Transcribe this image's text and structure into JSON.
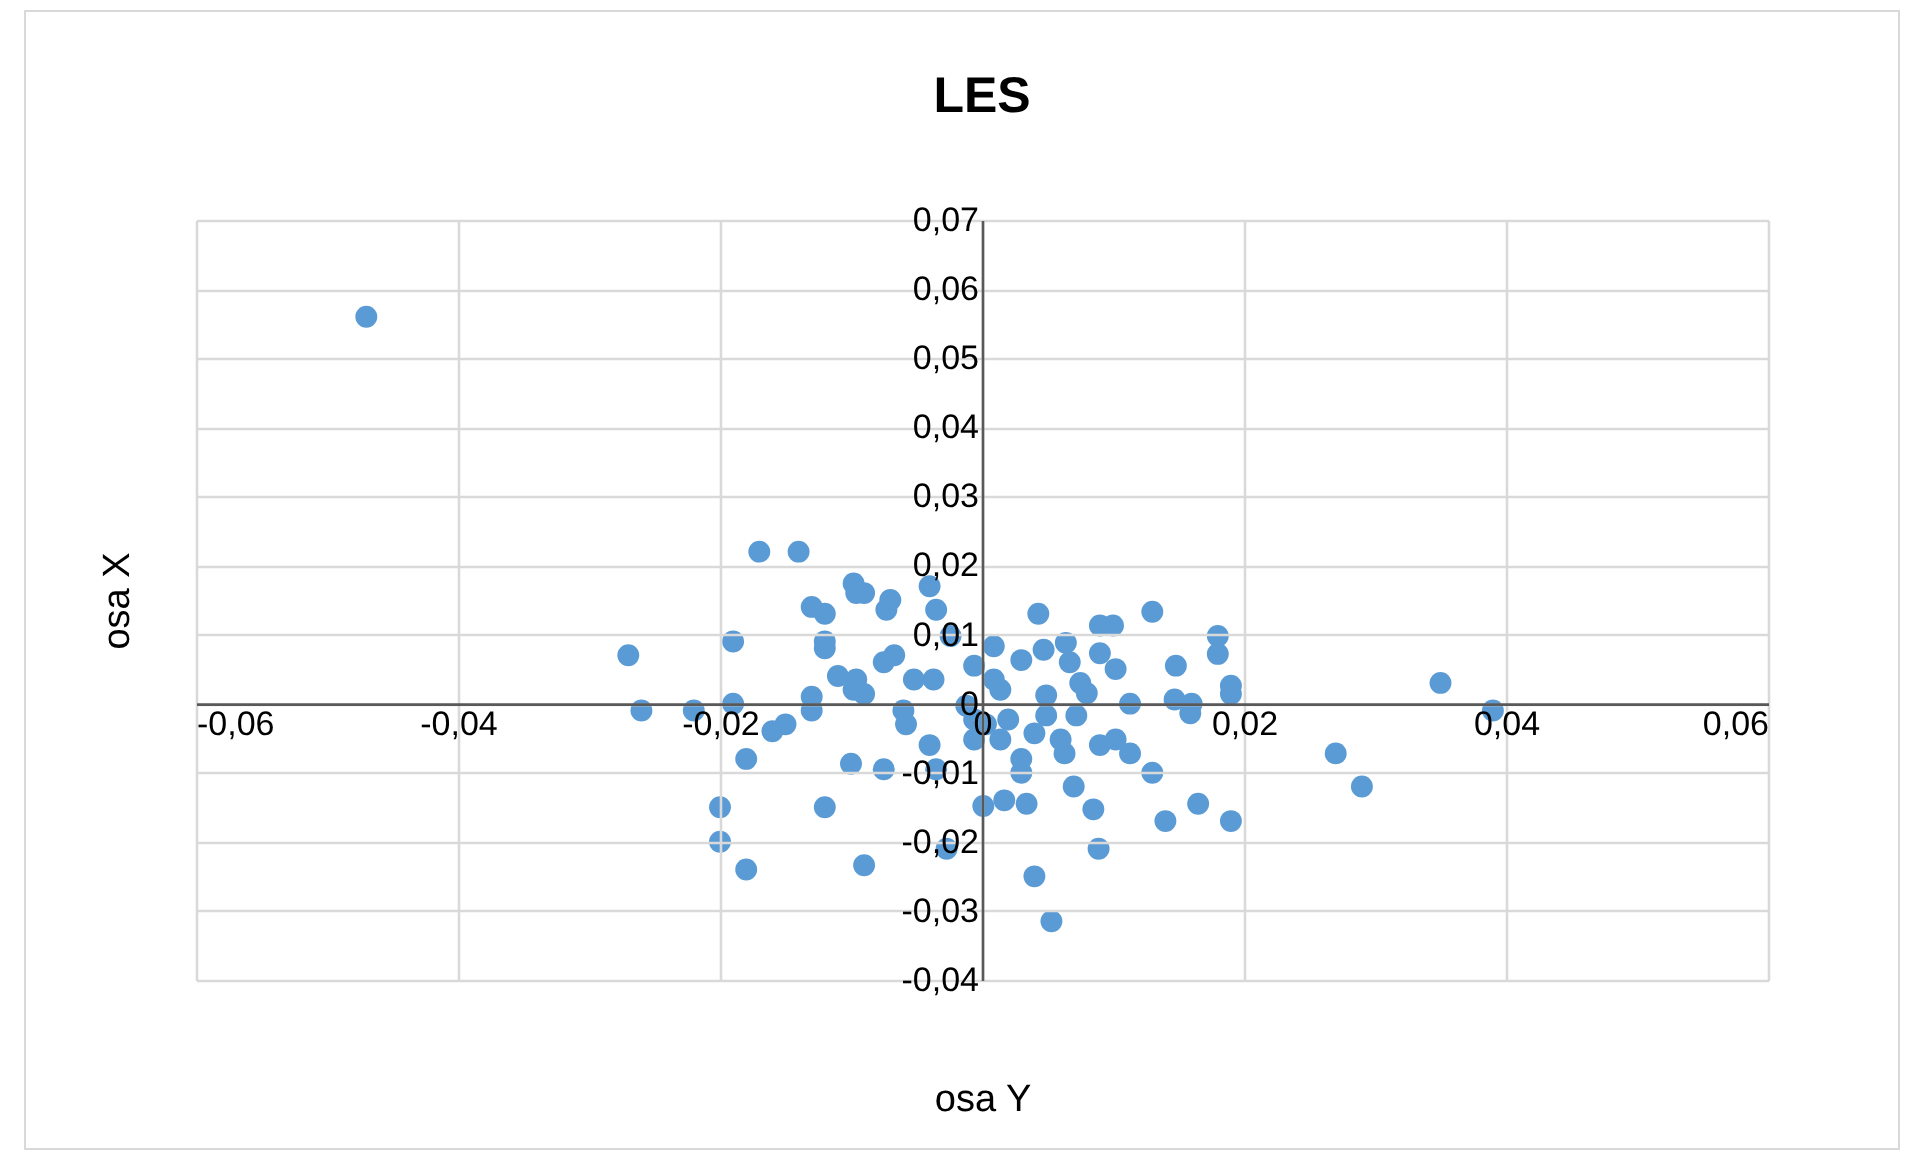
{
  "chart_data": {
    "type": "scatter",
    "title": "LES",
    "xlabel": "osa Y",
    "ylabel": "osa X",
    "color": "#5b9bd5",
    "marker": "circle",
    "grid": true,
    "xlim": [
      -0.06,
      0.06
    ],
    "ylim": [
      -0.04,
      0.07
    ],
    "xticks": [
      {
        "value": -0.06,
        "label": "-0,06"
      },
      {
        "value": -0.04,
        "label": "-0,04"
      },
      {
        "value": -0.02,
        "label": "-0,02"
      },
      {
        "value": 0,
        "label": "0"
      },
      {
        "value": 0.02,
        "label": "0,02"
      },
      {
        "value": 0.04,
        "label": "0,04"
      },
      {
        "value": 0.06,
        "label": "0,06"
      }
    ],
    "yticks": [
      {
        "value": -0.04,
        "label": "-0,04"
      },
      {
        "value": -0.03,
        "label": "-0,03"
      },
      {
        "value": -0.02,
        "label": "-0,02"
      },
      {
        "value": -0.01,
        "label": "-0,01"
      },
      {
        "value": 0,
        "label": "0"
      },
      {
        "value": 0.01,
        "label": "0,01"
      },
      {
        "value": 0.02,
        "label": "0,02"
      },
      {
        "value": 0.03,
        "label": "0,03"
      },
      {
        "value": 0.04,
        "label": "0,04"
      },
      {
        "value": 0.05,
        "label": "0,05"
      },
      {
        "value": 0.06,
        "label": "0,06"
      },
      {
        "value": 0.07,
        "label": "0,07"
      }
    ],
    "x": [
      -0.047,
      -0.017,
      -0.014,
      -0.027,
      -0.019,
      -0.026,
      -0.022,
      -0.019,
      -0.016,
      -0.015,
      -0.018,
      -0.013,
      -0.013,
      -0.013,
      -0.012,
      -0.012,
      -0.012,
      -0.011,
      -0.0096,
      -0.0098,
      -0.009,
      -0.0098,
      -0.0096,
      -0.009,
      -0.0073,
      -0.0075,
      -0.0067,
      -0.0052,
      -0.0037,
      -0.004,
      -0.0035,
      -0.0024,
      -0.01,
      -0.012,
      -0.02,
      -0.02,
      -0.018,
      -0.009,
      -0.0027,
      -0.0058,
      -0.004,
      -0.0035,
      -0.0075,
      -0.006,
      -0.007,
      0.0043,
      0.009,
      0.01,
      0.013,
      0.018,
      0.018,
      0.0148,
      0.019,
      0.019,
      0.0147,
      0.016,
      0.0159,
      0.0113,
      0.0009,
      0.003,
      0.0047,
      0.0064,
      0.009,
      0.0102,
      0.0067,
      0.0075,
      0.008,
      0.0049,
      0.0014,
      0.0049,
      0.0072,
      0.006,
      0.0063,
      0.009,
      0.0102,
      0.0113,
      0.013,
      0.014,
      0.0165,
      0.019,
      0.0085,
      0.0089,
      0.007,
      0.004,
      0.0053,
      0.0001,
      0.0017,
      0.0034,
      0.003,
      0.003,
      0.0014,
      -0.0006,
      -0.0012,
      -0.0006,
      0.0003,
      0.002,
      0.004,
      -0.0006,
      0.0009,
      0.027,
      0.029,
      0.035,
      0.039
    ],
    "values": [
      0.056,
      0.022,
      0.022,
      0.007,
      0.009,
      -0.001,
      -0.001,
      0.0,
      -0.004,
      -0.003,
      -0.008,
      0.014,
      0.001,
      -0.001,
      0.013,
      0.009,
      0.008,
      0.004,
      0.0035,
      0.002,
      0.0014,
      0.0174,
      0.016,
      0.016,
      0.0136,
      0.006,
      0.007,
      0.0035,
      0.0035,
      0.017,
      0.0136,
      0.0098,
      -0.0087,
      -0.015,
      -0.015,
      -0.02,
      -0.024,
      -0.0234,
      -0.021,
      -0.003,
      -0.006,
      -0.0095,
      -0.0095,
      -0.001,
      0.015,
      0.013,
      0.0113,
      0.0113,
      0.0133,
      0.0098,
      0.0072,
      0.0055,
      0.0026,
      0.0014,
      0.0006,
      0.0,
      -0.0014,
      0.0,
      0.0083,
      0.0063,
      0.0078,
      0.0088,
      0.0073,
      0.005,
      0.006,
      0.003,
      0.0015,
      0.0012,
      0.002,
      -0.0017,
      -0.0017,
      -0.0052,
      -0.0072,
      -0.006,
      -0.0052,
      -0.0072,
      -0.01,
      -0.017,
      -0.0145,
      -0.017,
      -0.0153,
      -0.021,
      -0.012,
      -0.025,
      -0.0315,
      -0.0148,
      -0.014,
      -0.0145,
      -0.01,
      -0.008,
      -0.0052,
      -0.0052,
      -0.0003,
      -0.0023,
      -0.003,
      -0.0023,
      -0.0043,
      0.0055,
      0.0035,
      -0.0072,
      -0.012,
      0.003,
      -0.001
    ]
  }
}
